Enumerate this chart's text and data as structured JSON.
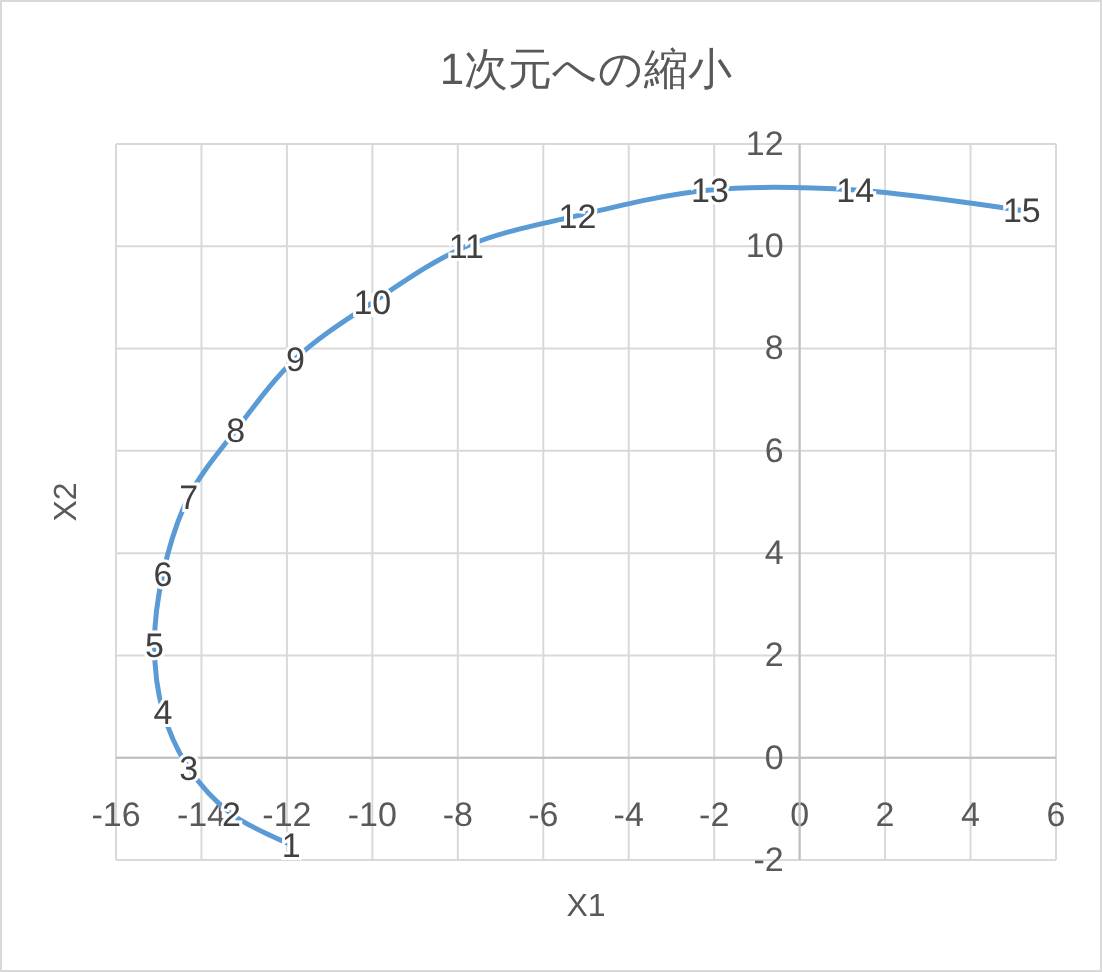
{
  "chart_data": {
    "type": "line",
    "title": "1次元への縮小",
    "xlabel": "X1",
    "ylabel": "X2",
    "x": [
      -11.9,
      -13.3,
      -14.3,
      -14.9,
      -15.1,
      -14.9,
      -14.3,
      -13.2,
      -11.8,
      -10,
      -7.8,
      -5.2,
      -2.1,
      1.3,
      5.2
    ],
    "series": [
      {
        "color": "#5b9bd5",
        "values": [
          -1.7,
          -1.1,
          -0.2,
          0.9,
          2.2,
          3.6,
          5.1,
          6.4,
          7.8,
          8.9,
          10,
          10.6,
          11.1,
          11.1,
          10.7
        ]
      }
    ],
    "annotations": [
      {
        "text": "1",
        "x": -11.9,
        "y": -1.7
      },
      {
        "text": "2",
        "x": -13.3,
        "y": -1.1
      },
      {
        "text": "3",
        "x": -14.3,
        "y": -0.2
      },
      {
        "text": "4",
        "x": -14.9,
        "y": 0.9
      },
      {
        "text": "5",
        "x": -15.1,
        "y": 2.2
      },
      {
        "text": "6",
        "x": -14.9,
        "y": 3.6
      },
      {
        "text": "7",
        "x": -14.3,
        "y": 5.1
      },
      {
        "text": "8",
        "x": -13.2,
        "y": 6.4
      },
      {
        "text": "9",
        "x": -11.8,
        "y": 7.8
      },
      {
        "text": "10",
        "x": -10,
        "y": 8.9
      },
      {
        "text": "11",
        "x": -7.8,
        "y": 10
      },
      {
        "text": "12",
        "x": -5.2,
        "y": 10.6
      },
      {
        "text": "13",
        "x": -2.1,
        "y": 11.1
      },
      {
        "text": "14",
        "x": 1.3,
        "y": 11.1
      },
      {
        "text": "15",
        "x": 5.2,
        "y": 10.7
      }
    ],
    "xlim": [
      -16,
      6
    ],
    "xticks": [
      -16,
      -14,
      -12,
      -10,
      -8,
      -6,
      -4,
      -2,
      0,
      2,
      4,
      6
    ],
    "ylim": [
      -2,
      12
    ],
    "yticks": [
      -2,
      0,
      2,
      4,
      6,
      8,
      10,
      12
    ],
    "grid": true,
    "marker": "none",
    "line_style": "solid"
  }
}
